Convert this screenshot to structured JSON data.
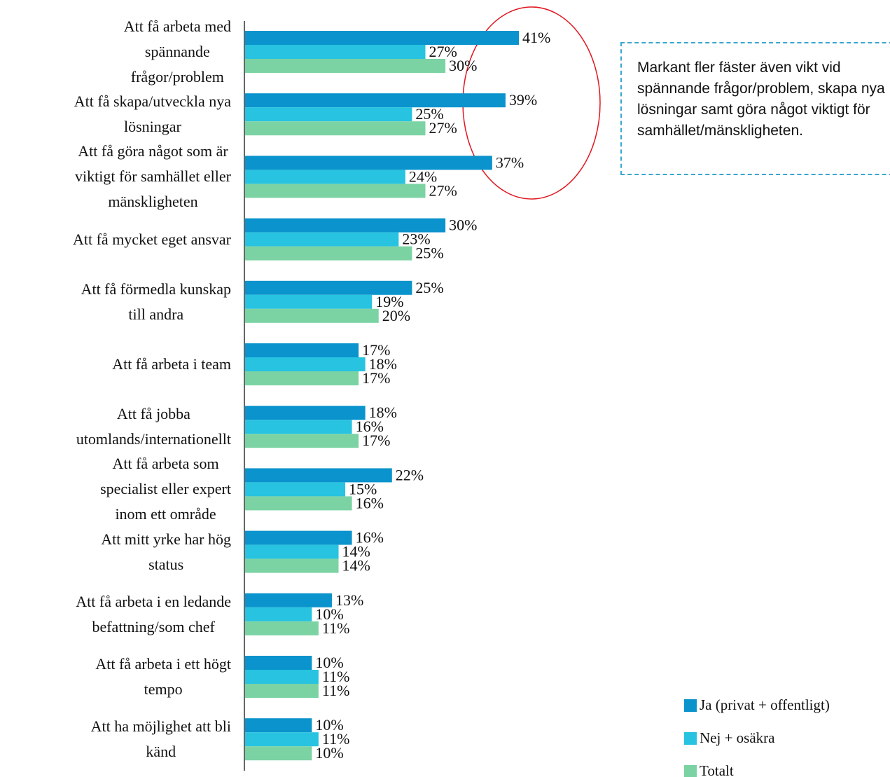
{
  "chart_data": {
    "type": "bar",
    "orientation": "horizontal",
    "categories": [
      "Att få arbeta med\nspännande\nfrågor/problem",
      "Att få skapa/utveckla nya\nlösningar",
      "Att få göra något som är\nviktigt för samhället eller\nmänskligheten",
      "Att få mycket eget ansvar",
      "Att få förmedla kunskap\ntill andra",
      "Att få arbeta i team",
      "Att få jobba\nutomlands/internationellt",
      "Att få arbeta som\nspecialist eller expert\ninom ett område",
      "Att mitt yrke har hög\nstatus",
      "Att få arbeta i en ledande\nbefattning/som chef",
      "Att få arbeta i ett högt\ntempo",
      "Att ha möjlighet att bli\nkänd"
    ],
    "series": [
      {
        "name": "Ja (privat + offentligt)",
        "color": "#0a93cc",
        "values": [
          41,
          39,
          37,
          30,
          25,
          17,
          18,
          22,
          16,
          13,
          10,
          10
        ],
        "value_labels": [
          "41%",
          "39%",
          "37%",
          "30%",
          "25%",
          "17%",
          "18%",
          "22%",
          "16%",
          "13%",
          "10%",
          "10%"
        ]
      },
      {
        "name": "Nej + osäkra",
        "color": "#27c3e0",
        "values": [
          27,
          25,
          24,
          23,
          19,
          18,
          16,
          15,
          14,
          10,
          11,
          11
        ],
        "value_labels": [
          "27%",
          "25%",
          "24%",
          "23%",
          "19%",
          "18%",
          "16%",
          "15%",
          "14%",
          "10%",
          "11%",
          "11%"
        ]
      },
      {
        "name": "Totalt",
        "color": "#7bd3a4",
        "values": [
          30,
          27,
          27,
          25,
          20,
          17,
          17,
          16,
          14,
          11,
          11,
          10
        ],
        "value_labels": [
          "30%",
          "27%",
          "27%",
          "25%",
          "20%",
          "17%",
          "17%",
          "16%",
          "14%",
          "11%",
          "11%",
          "10%"
        ]
      }
    ],
    "annotation": "Markant fler fäster även vikt vid spännande frågor/problem, skapa nya lösningar samt göra något viktigt för samhället/mänskligheten."
  }
}
